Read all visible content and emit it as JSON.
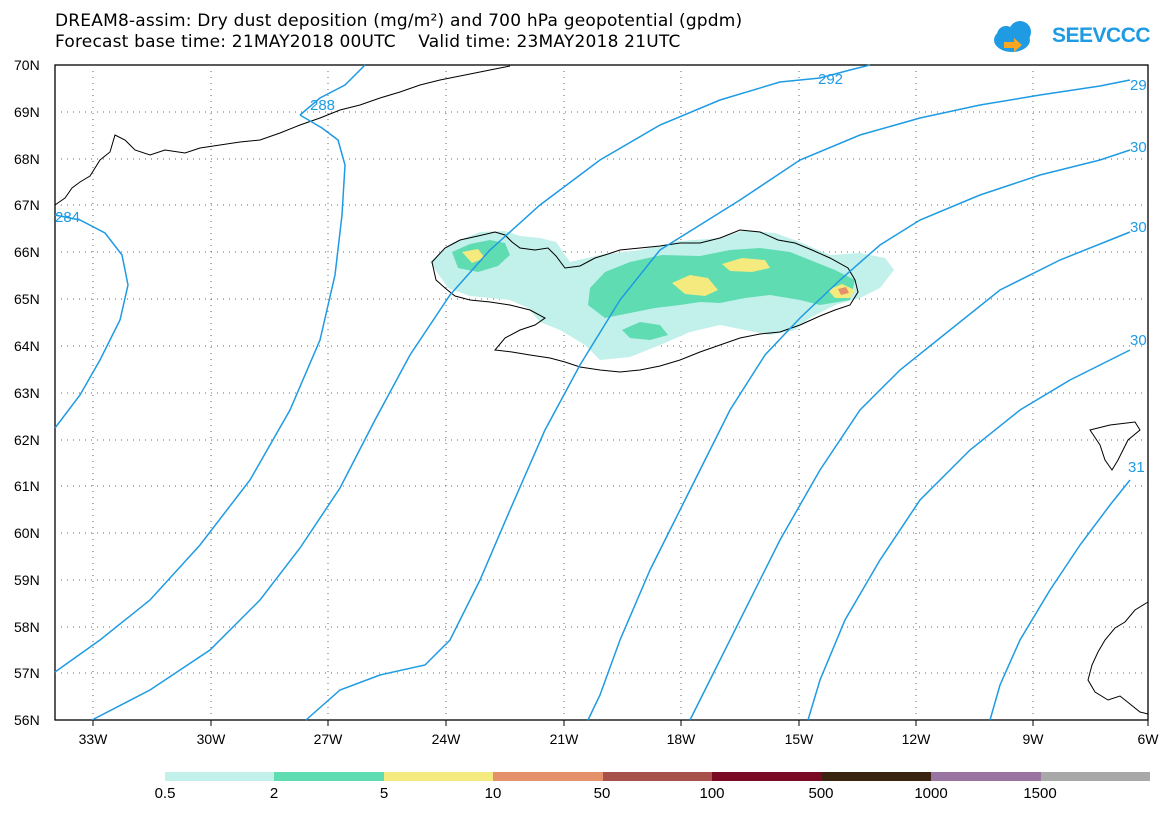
{
  "header": {
    "title_line1": "DREAM8-assim: Dry dust deposition (mg/m²) and 700 hPa geopotential (gpdm)",
    "title_line2": "Forecast base time: 21MAY2018 00UTC    Valid time: 23MAY2018 21UTC",
    "logo_text": "SEEVCCC"
  },
  "map": {
    "lat_labels": [
      "70N",
      "69N",
      "68N",
      "67N",
      "66N",
      "65N",
      "64N",
      "63N",
      "62N",
      "61N",
      "60N",
      "59N",
      "58N",
      "57N",
      "56N"
    ],
    "lon_labels": [
      "33W",
      "30W",
      "27W",
      "24W",
      "21W",
      "18W",
      "15W",
      "12W",
      "9W",
      "6W"
    ],
    "contour_labels": [
      "288",
      "292",
      "29",
      "30",
      "30",
      "30",
      "31",
      "284"
    ],
    "contour_color": "#1e9be3"
  },
  "legend": {
    "labels": [
      "0.5",
      "2",
      "5",
      "10",
      "50",
      "100",
      "500",
      "1000",
      "1500"
    ],
    "colors": [
      "#c2f0ea",
      "#5fdcb2",
      "#f5ea7e",
      "#e5926a",
      "#a6514a",
      "#7a0a23",
      "#3a2410",
      "#9a74a0",
      "#a8a8a8"
    ]
  }
}
